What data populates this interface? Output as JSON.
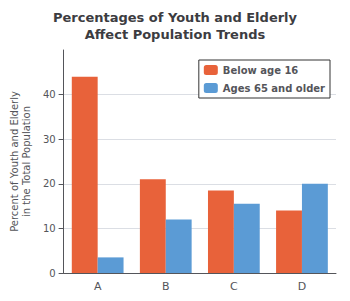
{
  "chart_data": {
    "type": "bar",
    "title": [
      "Percentages of Youth and Elderly",
      "Affect Population Trends"
    ],
    "ylabel": [
      "Percent of Youth and Elderly",
      "in the Total Population"
    ],
    "categories": [
      "A",
      "B",
      "C",
      "D"
    ],
    "series": [
      {
        "name": "Below age 16",
        "color": "#e8623a",
        "values": [
          44,
          21,
          18.5,
          14
        ]
      },
      {
        "name": "Ages 65 and older",
        "color": "#5b9bd5",
        "values": [
          3.5,
          12,
          15.5,
          20
        ]
      }
    ],
    "ylim": [
      0,
      50
    ],
    "yticks": [
      0,
      10,
      20,
      30,
      40
    ],
    "grid": true,
    "legend": "upper right"
  }
}
